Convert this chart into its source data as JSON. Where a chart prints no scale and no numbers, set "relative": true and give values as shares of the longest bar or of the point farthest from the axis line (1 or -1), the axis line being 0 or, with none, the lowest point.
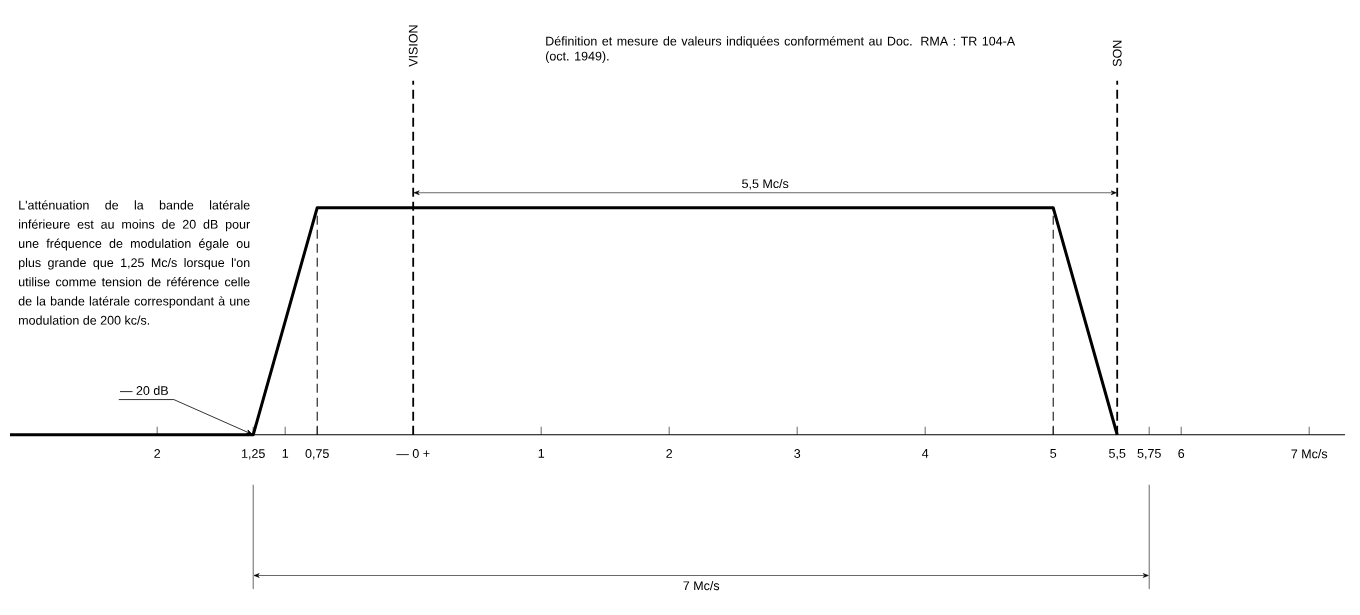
{
  "chart_data": {
    "type": "line",
    "relative": true,
    "marker": "none",
    "series": [
      {
        "color": "#000000",
        "x": [
          -3.15,
          -1.25,
          -0.75,
          5,
          5.5
        ],
        "values": [
          0,
          0,
          1,
          1,
          0
        ]
      }
    ],
    "xlim": [
      -3.15,
      7.28
    ],
    "xticks": [
      {
        "value": -2,
        "label": "2"
      },
      {
        "value": -1.25,
        "label": "1,25"
      },
      {
        "value": -1,
        "label": "1"
      },
      {
        "value": -0.75,
        "label": "0,75"
      },
      {
        "value": 0,
        "label": "— 0 +"
      },
      1,
      2,
      3,
      4,
      5,
      {
        "value": 5.5,
        "label": "5,5"
      },
      {
        "value": 5.75,
        "label": "5,75"
      },
      6,
      {
        "value": 7,
        "label": "7 Mc/s"
      }
    ],
    "ref_lines": [
      {
        "axis": "x",
        "value": 0,
        "label": "VISION",
        "line_style": "dashed"
      },
      {
        "axis": "x",
        "value": 5.5,
        "label": "SON",
        "line_style": "dashed"
      },
      {
        "axis": "x",
        "value": -0.75,
        "label": null,
        "line_style": "dashed"
      },
      {
        "axis": "x",
        "value": 5,
        "label": null,
        "line_style": "dashed"
      }
    ],
    "annotations": [
      "L'atténuation de la bande latérale inférieure est au moins de 20 dB pour une fréquence de modulation égale ou plus grande que 1,25 Mc/s lorsque l'on utilise comme tension de référence celle de la bande latérale correspondant à une modulation de 200 kc/s.",
      "Définition et mesure de valeurs indiquées conformément au Doc. RMA : TR 104-A (oct. 1949).",
      {
        "text": "— 20 dB",
        "x": -1.25,
        "y": 0
      },
      "5,5 Mc/s",
      "7 Mc/s"
    ]
  }
}
